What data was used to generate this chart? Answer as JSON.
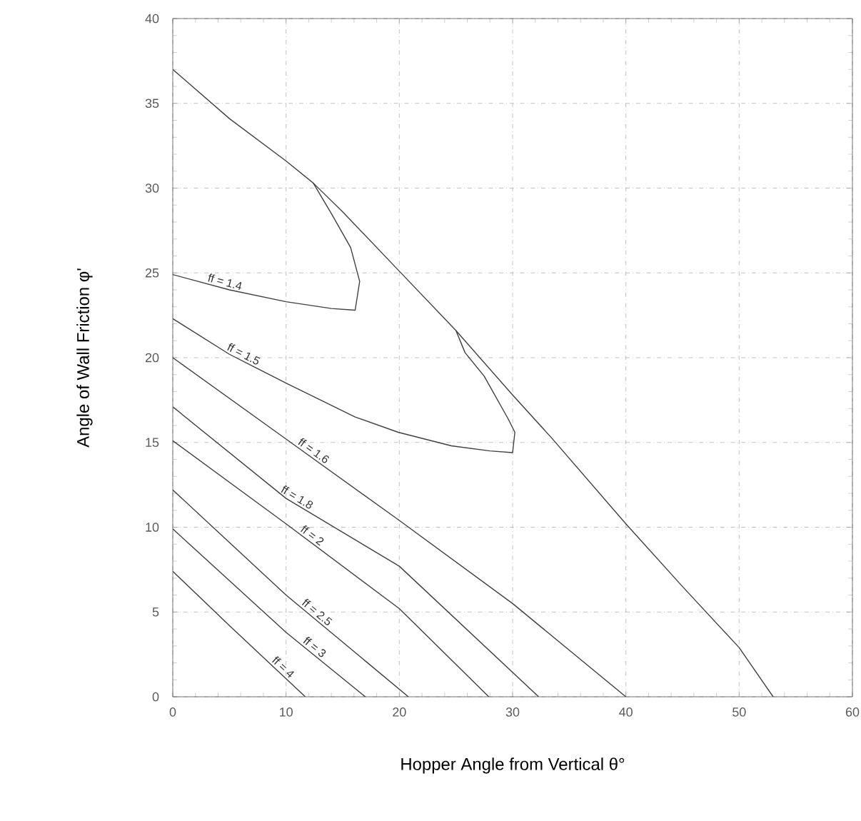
{
  "chart_data": {
    "type": "line",
    "xlabel": "Hopper Angle from Vertical θ°",
    "ylabel": "Angle of Wall Friction φ'",
    "xlim": [
      0,
      60
    ],
    "ylim": [
      0,
      40
    ],
    "xticks": [
      0,
      10,
      20,
      30,
      40,
      50,
      60
    ],
    "yticks": [
      0,
      5,
      10,
      15,
      20,
      25,
      30,
      35,
      40
    ],
    "grid": true,
    "series": [
      {
        "color": "#404040",
        "x": [
          0,
          5,
          10,
          12.4,
          15,
          20,
          25,
          30,
          33.4,
          40,
          45,
          50,
          53
        ],
        "values": [
          37,
          34.1,
          31.6,
          30.3,
          28.6,
          25.1,
          21.6,
          17.8,
          15.3,
          10.2,
          6.5,
          2.9,
          0
        ]
      },
      {
        "name": "ff = 1.4",
        "color": "#404040",
        "x": [
          0,
          5,
          10,
          14,
          16.1,
          16.5,
          15.7,
          14,
          12.4
        ],
        "values": [
          24.9,
          24,
          23.3,
          22.9,
          22.8,
          24.5,
          26.5,
          28.5,
          30.3
        ]
      },
      {
        "name": "ff = 1.5",
        "color": "#404040",
        "x": [
          0,
          5,
          10,
          16.1,
          19.9,
          24.6,
          28,
          30,
          30.2,
          29.6,
          27.5,
          25.8,
          25
        ],
        "values": [
          22.3,
          20.2,
          18.5,
          16.5,
          15.6,
          14.8,
          14.5,
          14.4,
          15.6,
          16.4,
          18.9,
          20.3,
          21.6
        ]
      },
      {
        "name": "ff = 1.6",
        "color": "#404040",
        "x": [
          0,
          10,
          20,
          30,
          40
        ],
        "values": [
          20,
          15.2,
          10.4,
          5.5,
          0
        ]
      },
      {
        "name": "ff = 1.8",
        "color": "#404040",
        "x": [
          0,
          10,
          20,
          32.3
        ],
        "values": [
          17.1,
          11.7,
          7.7,
          0
        ]
      },
      {
        "name": "ff = 2",
        "color": "#404040",
        "x": [
          0,
          10,
          20,
          27.9
        ],
        "values": [
          15.1,
          10.2,
          5.2,
          0
        ]
      },
      {
        "name": "ff = 2.5",
        "color": "#404040",
        "x": [
          0,
          10,
          20.8
        ],
        "values": [
          12.2,
          6,
          0
        ]
      },
      {
        "name": "ff = 3",
        "color": "#404040",
        "x": [
          0,
          10,
          17
        ],
        "values": [
          9.9,
          3.8,
          0
        ]
      },
      {
        "name": "ff = 4",
        "color": "#404040",
        "x": [
          0,
          5,
          11.7
        ],
        "values": [
          7.4,
          4.2,
          0
        ]
      }
    ]
  }
}
